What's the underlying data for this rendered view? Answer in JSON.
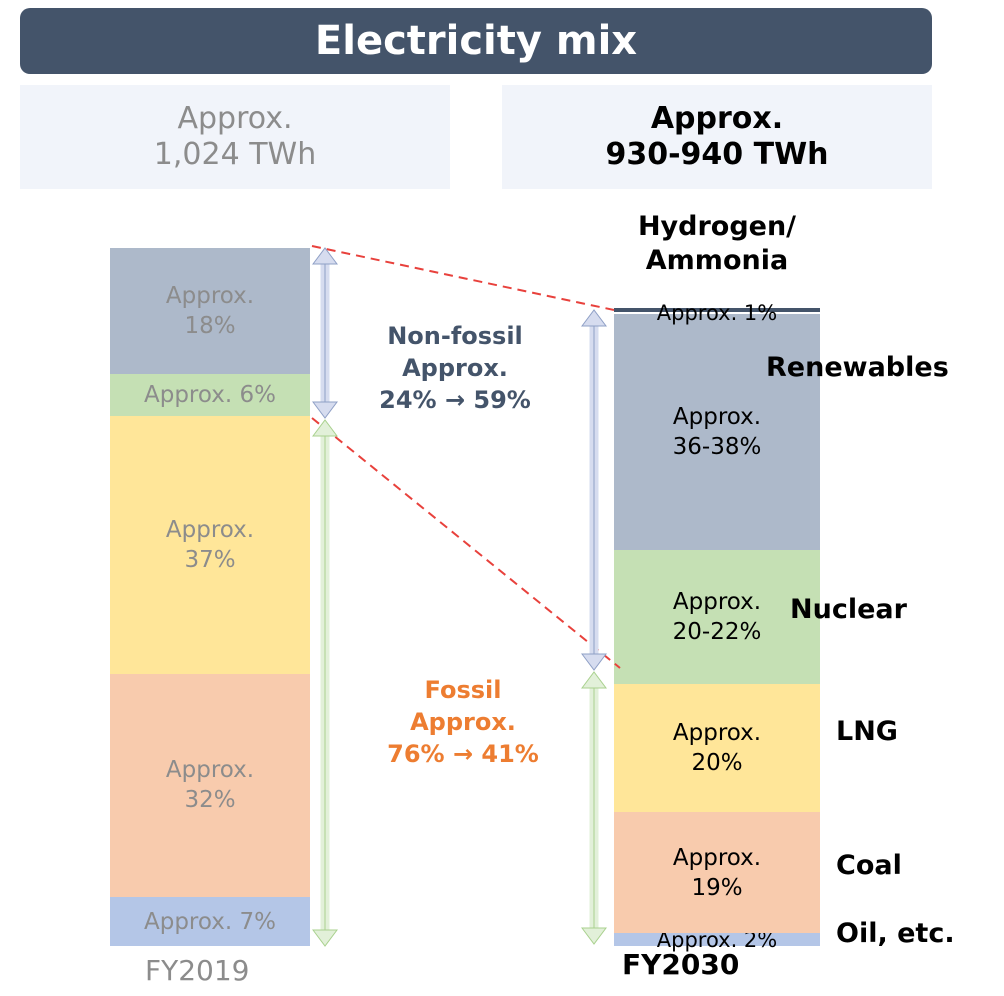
{
  "title": "Electricity mix",
  "totals": {
    "fy2019": {
      "line1": "Approx.",
      "line2": "1,024 TWh"
    },
    "fy2030": {
      "line1": "Approx.",
      "line2": "930-940 TWh"
    }
  },
  "chart_data": {
    "type": "bar",
    "title": "Electricity mix",
    "categories": [
      "FY2019",
      "FY2030"
    ],
    "series": [
      {
        "name": "Oil, etc.",
        "values": [
          7,
          2
        ],
        "labels": [
          "Approx. 7%",
          "Approx. 2%"
        ],
        "color": "#b4c6e7"
      },
      {
        "name": "Coal",
        "values": [
          32,
          19
        ],
        "labels": [
          "Approx.\n32%",
          "Approx.\n19%"
        ],
        "color": "#f8cbad"
      },
      {
        "name": "LNG",
        "values": [
          37,
          20
        ],
        "labels": [
          "Approx.\n37%",
          "Approx.\n20%"
        ],
        "color": "#ffe699"
      },
      {
        "name": "Nuclear",
        "values": [
          6,
          21
        ],
        "labels": [
          "Approx. 6%",
          "Approx.\n20-22%"
        ],
        "color": "#c5e0b4"
      },
      {
        "name": "Renewables",
        "values": [
          18,
          37
        ],
        "labels": [
          "Approx.\n18%",
          "Approx.\n36-38%"
        ],
        "color": "#adb9ca"
      },
      {
        "name": "Hydrogen/\nAmmonia",
        "values": [
          0,
          1
        ],
        "labels": [
          "",
          "Approx. 1%"
        ],
        "color": "#44546a"
      }
    ],
    "annotations": {
      "non_fossil": {
        "line1": "Non-fossil",
        "line2": "Approx.",
        "line3": "24% → 59%"
      },
      "fossil": {
        "line1": "Fossil",
        "line2": "Approx.",
        "line3": "76% → 41%"
      }
    },
    "colors": {
      "non_fossil_text": "#44546a",
      "fossil_text": "#ed7d31",
      "non_fossil_arrow": "#d6dcef",
      "fossil_arrow": "#e2f0d9",
      "dashed": "#e8413c"
    }
  }
}
